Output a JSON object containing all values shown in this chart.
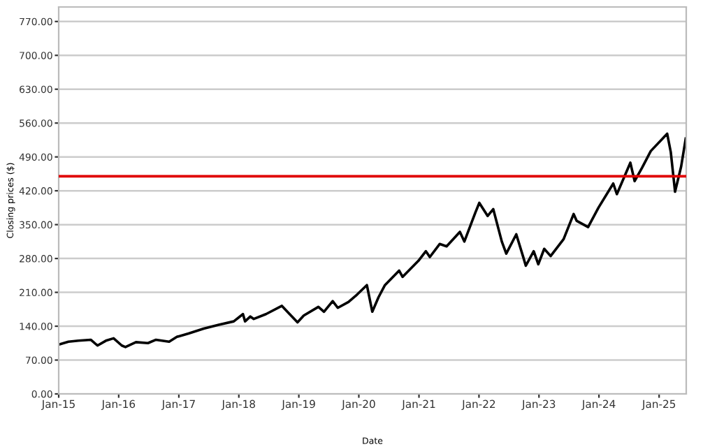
{
  "chart_data": {
    "type": "line",
    "xlabel": "Date",
    "ylabel": "Closing prices ($)",
    "x": [
      "2015-01-02",
      "2015-03-01",
      "2015-05-01",
      "2015-07-15",
      "2015-08-25",
      "2015-10-15",
      "2015-12-01",
      "2016-01-20",
      "2016-02-11",
      "2016-04-15",
      "2016-06-27",
      "2016-08-15",
      "2016-11-03",
      "2016-12-20",
      "2017-03-01",
      "2017-06-01",
      "2017-09-01",
      "2017-12-01",
      "2018-01-26",
      "2018-02-08",
      "2018-03-12",
      "2018-04-02",
      "2018-06-15",
      "2018-09-20",
      "2018-10-29",
      "2018-12-24",
      "2019-01-31",
      "2019-04-30",
      "2019-06-03",
      "2019-07-26",
      "2019-08-26",
      "2019-10-30",
      "2019-12-20",
      "2020-02-19",
      "2020-03-23",
      "2020-04-30",
      "2020-06-08",
      "2020-09-02",
      "2020-09-23",
      "2020-12-28",
      "2021-02-12",
      "2021-03-08",
      "2021-05-07",
      "2021-06-18",
      "2021-09-07",
      "2021-10-04",
      "2021-12-10",
      "2022-01-03",
      "2022-02-23",
      "2022-03-29",
      "2022-05-20",
      "2022-06-16",
      "2022-08-16",
      "2022-09-30",
      "2022-10-13",
      "2022-11-30",
      "2022-12-28",
      "2023-02-02",
      "2023-03-13",
      "2023-05-31",
      "2023-07-31",
      "2023-08-18",
      "2023-10-27",
      "2023-12-29",
      "2024-03-28",
      "2024-04-19",
      "2024-07-10",
      "2024-08-05",
      "2024-09-20",
      "2024-11-11",
      "2025-02-19",
      "2025-03-13",
      "2025-04-08",
      "2025-05-15",
      "2025-06-12"
    ],
    "series": [
      {
        "color": "#000000",
        "values": [
          102,
          108,
          110,
          112,
          100,
          110,
          115,
          100,
          97,
          107,
          105,
          112,
          108,
          118,
          125,
          135,
          143,
          150,
          165,
          150,
          160,
          155,
          165,
          182,
          168,
          148,
          162,
          180,
          170,
          192,
          178,
          190,
          205,
          225,
          170,
          200,
          225,
          255,
          242,
          275,
          295,
          283,
          310,
          305,
          335,
          315,
          375,
          395,
          368,
          382,
          315,
          290,
          330,
          280,
          265,
          295,
          268,
          300,
          285,
          320,
          372,
          358,
          345,
          385,
          435,
          413,
          478,
          440,
          468,
          502,
          538,
          500,
          418,
          470,
          528
        ]
      }
    ],
    "xlim": [
      "2015-01-01",
      "2025-06-15"
    ],
    "xticks": [
      {
        "value": "2015-01-01",
        "label": "Jan-15"
      },
      {
        "value": "2016-01-01",
        "label": "Jan-16"
      },
      {
        "value": "2017-01-01",
        "label": "Jan-17"
      },
      {
        "value": "2018-01-01",
        "label": "Jan-18"
      },
      {
        "value": "2019-01-01",
        "label": "Jan-19"
      },
      {
        "value": "2020-01-01",
        "label": "Jan-20"
      },
      {
        "value": "2021-01-01",
        "label": "Jan-21"
      },
      {
        "value": "2022-01-01",
        "label": "Jan-22"
      },
      {
        "value": "2023-01-01",
        "label": "Jan-23"
      },
      {
        "value": "2024-01-01",
        "label": "Jan-24"
      },
      {
        "value": "2025-01-01",
        "label": "Jan-25"
      }
    ],
    "ylim": [
      0,
      800
    ],
    "yticks": [
      {
        "value": 0,
        "label": "0.00"
      },
      {
        "value": 70,
        "label": "70.00"
      },
      {
        "value": 140,
        "label": "140.00"
      },
      {
        "value": 210,
        "label": "210.00"
      },
      {
        "value": 280,
        "label": "280.00"
      },
      {
        "value": 350,
        "label": "350.00"
      },
      {
        "value": 420,
        "label": "420.00"
      },
      {
        "value": 490,
        "label": "490.00"
      },
      {
        "value": 560,
        "label": "560.00"
      },
      {
        "value": 630,
        "label": "630.00"
      },
      {
        "value": 700,
        "label": "700.00"
      },
      {
        "value": 770,
        "label": "770.00"
      }
    ],
    "ref_lines": [
      {
        "axis": "y",
        "value": 450,
        "color": "#e00000"
      }
    ],
    "grid": "y",
    "legend": false,
    "marker": "none",
    "line_style": "solid"
  }
}
